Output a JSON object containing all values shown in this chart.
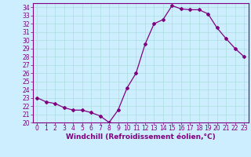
{
  "x": [
    0,
    1,
    2,
    3,
    4,
    5,
    6,
    7,
    8,
    9,
    10,
    11,
    12,
    13,
    14,
    15,
    16,
    17,
    18,
    19,
    20,
    21,
    22,
    23
  ],
  "y": [
    23.0,
    22.5,
    22.3,
    21.8,
    21.5,
    21.5,
    21.2,
    20.8,
    20.0,
    21.5,
    24.2,
    26.0,
    29.5,
    32.0,
    32.5,
    34.2,
    33.8,
    33.7,
    33.7,
    33.2,
    31.5,
    30.2,
    29.0,
    28.0
  ],
  "line_color": "#800080",
  "marker": "D",
  "marker_size": 2,
  "bg_color": "#cceeff",
  "grid_color": "#aadddd",
  "xlabel": "Windchill (Refroidissement éolien,°C)",
  "ylim": [
    20,
    34.5
  ],
  "xlim": [
    -0.5,
    23.5
  ],
  "yticks": [
    20,
    21,
    22,
    23,
    24,
    25,
    26,
    27,
    28,
    29,
    30,
    31,
    32,
    33,
    34
  ],
  "xticks": [
    0,
    1,
    2,
    3,
    4,
    5,
    6,
    7,
    8,
    9,
    10,
    11,
    12,
    13,
    14,
    15,
    16,
    17,
    18,
    19,
    20,
    21,
    22,
    23
  ],
  "tick_color": "#800080",
  "label_color": "#800080",
  "spine_color": "#800080",
  "tick_fontsize": 5.5,
  "xlabel_fontsize": 6.5
}
